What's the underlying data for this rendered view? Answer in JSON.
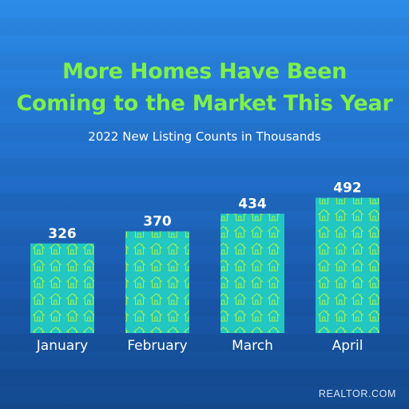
{
  "title_lines": [
    "More Homes Have Been",
    "Coming to the Market This Year"
  ],
  "subtitle": "2022 New Listing Counts in Thousands",
  "brand": "REALTOR.COM",
  "colors": {
    "title": "#7ef04a",
    "bar_fill": "#21c7c0",
    "house_icon": "#9cf05a",
    "label": "#ffffff"
  },
  "chart_data": {
    "type": "bar",
    "title": "More Homes Have Been Coming to the Market This Year",
    "subtitle": "2022 New Listing Counts in Thousands",
    "categories": [
      "January",
      "February",
      "March",
      "April"
    ],
    "values": [
      326,
      370,
      434,
      492
    ],
    "data_labels": [
      "326",
      "370",
      "434",
      "492"
    ],
    "bar_fill_icon": "house-icon",
    "grid": false,
    "legend": "none"
  }
}
